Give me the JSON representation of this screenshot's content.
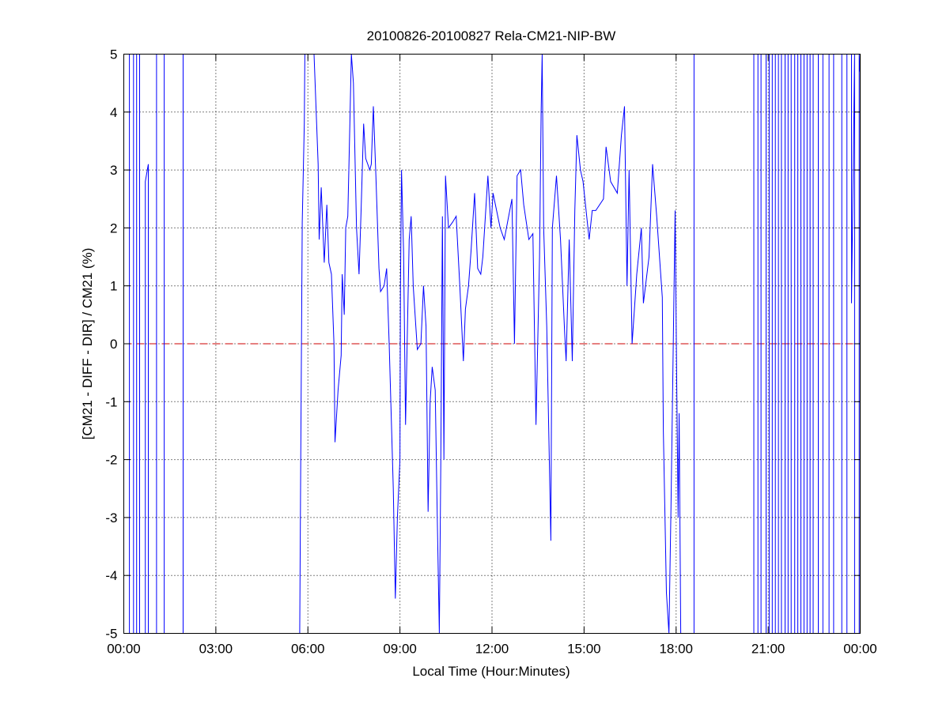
{
  "chart_data": {
    "type": "line",
    "title": "20100826-20100827 Rela-CM21-NIP-BW",
    "xlabel": "Local Time (Hour:Minutes)",
    "ylabel": "[CM21 - DIFF - DIR] / CM21 (%)",
    "xlim": [
      "00:00",
      "24:00"
    ],
    "ylim": [
      -5,
      5
    ],
    "grid": true,
    "x_ticks": [
      "00:00",
      "03:00",
      "06:00",
      "09:00",
      "12:00",
      "15:00",
      "18:00",
      "21:00",
      "00:00"
    ],
    "y_ticks": [
      "-5",
      "-4",
      "-3",
      "-2",
      "-1",
      "0",
      "1",
      "2",
      "3",
      "4",
      "5"
    ],
    "reference_line": {
      "y": 0,
      "style": "dashed",
      "color": "#cc0000"
    },
    "series": [
      {
        "color": "#0000ff",
        "points": [
          [
            "00:11",
            -5
          ],
          [
            "00:11",
            5
          ],
          [
            "00:19",
            5
          ],
          [
            "00:19",
            -5
          ],
          [
            "00:25",
            -5
          ],
          [
            "00:25",
            5
          ],
          [
            "00:31",
            5
          ],
          [
            "00:31",
            -5
          ],
          [
            "00:42",
            -5
          ],
          [
            "00:42",
            2.8
          ],
          [
            "00:48",
            3.1
          ],
          [
            "00:48",
            -5
          ],
          [
            "01:04",
            -5
          ],
          [
            "01:04",
            5
          ],
          [
            "01:19",
            5
          ],
          [
            "01:19",
            -5
          ],
          [
            "01:56",
            -5
          ],
          [
            "01:56",
            5
          ],
          [
            "01:56",
            -5
          ],
          [
            "05:44",
            -5
          ],
          [
            "05:46",
            -2
          ],
          [
            "05:49",
            2.1
          ],
          [
            "05:53",
            3.8
          ],
          [
            "05:54",
            5
          ],
          [
            "06:12",
            5
          ],
          [
            "06:20",
            3.1
          ],
          [
            "06:22",
            1.8
          ],
          [
            "06:26",
            2.7
          ],
          [
            "06:32",
            1.4
          ],
          [
            "06:37",
            2.4
          ],
          [
            "06:41",
            1.4
          ],
          [
            "06:46",
            1.2
          ],
          [
            "06:51",
            0.0
          ],
          [
            "06:53",
            -1.7
          ],
          [
            "06:59",
            -0.8
          ],
          [
            "07:05",
            -0.2
          ],
          [
            "07:07",
            1.2
          ],
          [
            "07:11",
            0.5
          ],
          [
            "07:14",
            2.0
          ],
          [
            "07:18",
            2.2
          ],
          [
            "07:22",
            3.8
          ],
          [
            "07:25",
            5
          ],
          [
            "07:29",
            4.5
          ],
          [
            "07:35",
            2.0
          ],
          [
            "07:40",
            1.2
          ],
          [
            "07:44",
            2.3
          ],
          [
            "07:49",
            3.8
          ],
          [
            "07:53",
            3.2
          ],
          [
            "08:01",
            3.0
          ],
          [
            "08:04",
            3.1
          ],
          [
            "08:08",
            4.1
          ],
          [
            "08:13",
            2.9
          ],
          [
            "08:19",
            1.3
          ],
          [
            "08:22",
            0.9
          ],
          [
            "08:29",
            1.0
          ],
          [
            "08:34",
            1.3
          ],
          [
            "08:39",
            0.0
          ],
          [
            "08:47",
            -2.5
          ],
          [
            "08:51",
            -4.4
          ],
          [
            "08:55",
            -3.0
          ],
          [
            "09:00",
            -2.0
          ],
          [
            "09:01",
            1.0
          ],
          [
            "09:03",
            3.0
          ],
          [
            "09:07",
            1.6
          ],
          [
            "09:11",
            -1.4
          ],
          [
            "09:18",
            1.8
          ],
          [
            "09:22",
            2.2
          ],
          [
            "09:26",
            1.0
          ],
          [
            "09:31",
            0.3
          ],
          [
            "09:34",
            -0.1
          ],
          [
            "09:41",
            0.0
          ],
          [
            "09:46",
            1.0
          ],
          [
            "09:51",
            0.3
          ],
          [
            "09:55",
            -2.9
          ],
          [
            "09:59",
            -1.0
          ],
          [
            "10:03",
            -0.4
          ],
          [
            "10:09",
            -0.8
          ],
          [
            "10:13",
            -3.0
          ],
          [
            "10:17",
            -5
          ],
          [
            "10:20",
            -2.0
          ],
          [
            "10:23",
            2.2
          ],
          [
            "10:26",
            -2.0
          ],
          [
            "10:29",
            2.9
          ],
          [
            "10:35",
            2.0
          ],
          [
            "10:43",
            2.1
          ],
          [
            "10:50",
            2.2
          ],
          [
            "10:57",
            1.0
          ],
          [
            "11:04",
            -0.3
          ],
          [
            "11:08",
            0.6
          ],
          [
            "11:14",
            1.0
          ],
          [
            "11:19",
            1.6
          ],
          [
            "11:26",
            2.6
          ],
          [
            "11:32",
            1.3
          ],
          [
            "11:38",
            1.2
          ],
          [
            "11:42",
            1.5
          ],
          [
            "11:52",
            2.9
          ],
          [
            "11:58",
            2.0
          ],
          [
            "12:02",
            2.6
          ],
          [
            "12:16",
            2.0
          ],
          [
            "12:24",
            1.8
          ],
          [
            "12:39",
            2.5
          ],
          [
            "12:44",
            0.0
          ],
          [
            "12:49",
            2.9
          ],
          [
            "12:56",
            3.0
          ],
          [
            "13:02",
            2.4
          ],
          [
            "13:12",
            1.8
          ],
          [
            "13:20",
            1.9
          ],
          [
            "13:26",
            -1.4
          ],
          [
            "13:33",
            1.5
          ],
          [
            "13:36",
            4.0
          ],
          [
            "13:38",
            5
          ],
          [
            "13:41",
            2.0
          ],
          [
            "13:47",
            0.3
          ],
          [
            "13:55",
            -3.4
          ],
          [
            "13:58",
            2.0
          ],
          [
            "14:06",
            2.9
          ],
          [
            "14:14",
            1.8
          ],
          [
            "14:22",
            0.2
          ],
          [
            "14:25",
            -0.3
          ],
          [
            "14:31",
            1.8
          ],
          [
            "14:37",
            -0.3
          ],
          [
            "14:42",
            2.3
          ],
          [
            "14:46",
            3.6
          ],
          [
            "14:53",
            3.0
          ],
          [
            "14:58",
            2.8
          ],
          [
            "15:10",
            1.8
          ],
          [
            "15:16",
            2.3
          ],
          [
            "15:23",
            2.3
          ],
          [
            "15:38",
            2.5
          ],
          [
            "15:43",
            3.4
          ],
          [
            "15:52",
            2.8
          ],
          [
            "16:05",
            2.6
          ],
          [
            "16:13",
            3.6
          ],
          [
            "16:19",
            4.1
          ],
          [
            "16:24",
            1.0
          ],
          [
            "16:28",
            3.0
          ],
          [
            "16:34",
            0.0
          ],
          [
            "16:43",
            1.2
          ],
          [
            "16:52",
            2.0
          ],
          [
            "16:56",
            0.7
          ],
          [
            "17:07",
            1.5
          ],
          [
            "17:14",
            3.1
          ],
          [
            "17:22",
            2.2
          ],
          [
            "17:33",
            0.8
          ],
          [
            "17:35",
            -1.5
          ],
          [
            "17:41",
            -4.3
          ],
          [
            "17:46",
            -5
          ],
          [
            "17:50",
            -2.8
          ],
          [
            "17:58",
            2.3
          ],
          [
            "18:01",
            -0.5
          ],
          [
            "18:04",
            -3.0
          ],
          [
            "18:06",
            -1.2
          ],
          [
            "18:09",
            -5
          ],
          [
            "18:35",
            -5
          ],
          [
            "18:35",
            5
          ],
          [
            "18:35",
            -5
          ],
          [
            "20:32",
            -5
          ],
          [
            "20:32",
            5
          ],
          [
            "20:40",
            5
          ],
          [
            "20:40",
            -5
          ],
          [
            "20:46",
            -5
          ],
          [
            "20:46",
            5
          ],
          [
            "20:56",
            5
          ],
          [
            "20:56",
            -5
          ],
          [
            "21:02",
            -5
          ],
          [
            "21:02",
            5
          ],
          [
            "21:08",
            5
          ],
          [
            "21:08",
            -5
          ],
          [
            "21:14",
            -5
          ],
          [
            "21:14",
            5
          ],
          [
            "21:20",
            5
          ],
          [
            "21:20",
            -5
          ],
          [
            "21:26",
            -5
          ],
          [
            "21:26",
            5
          ],
          [
            "21:33",
            5
          ],
          [
            "21:33",
            -5
          ],
          [
            "21:39",
            -5
          ],
          [
            "21:39",
            5
          ],
          [
            "21:45",
            5
          ],
          [
            "21:45",
            -5
          ],
          [
            "21:52",
            -5
          ],
          [
            "21:52",
            5
          ],
          [
            "21:58",
            5
          ],
          [
            "21:58",
            -5
          ],
          [
            "22:04",
            -5
          ],
          [
            "22:04",
            5
          ],
          [
            "22:10",
            5
          ],
          [
            "22:10",
            -5
          ],
          [
            "22:16",
            -5
          ],
          [
            "22:16",
            5
          ],
          [
            "22:22",
            5
          ],
          [
            "22:22",
            -5
          ],
          [
            "22:28",
            -5
          ],
          [
            "22:28",
            5
          ],
          [
            "22:38",
            5
          ],
          [
            "22:38",
            -5
          ],
          [
            "22:47",
            -5
          ],
          [
            "22:47",
            5
          ],
          [
            "22:59",
            5
          ],
          [
            "22:59",
            -5
          ],
          [
            "23:08",
            -5
          ],
          [
            "23:08",
            5
          ],
          [
            "23:24",
            5
          ],
          [
            "23:24",
            -5
          ],
          [
            "23:34",
            -5
          ],
          [
            "23:34",
            5
          ],
          [
            "23:43",
            5
          ],
          [
            "23:43",
            0.7
          ],
          [
            "23:49",
            5
          ],
          [
            "23:49",
            -5
          ],
          [
            "23:58",
            -5
          ],
          [
            "23:58",
            5
          ],
          [
            "23:59",
            4.7
          ]
        ]
      }
    ]
  }
}
